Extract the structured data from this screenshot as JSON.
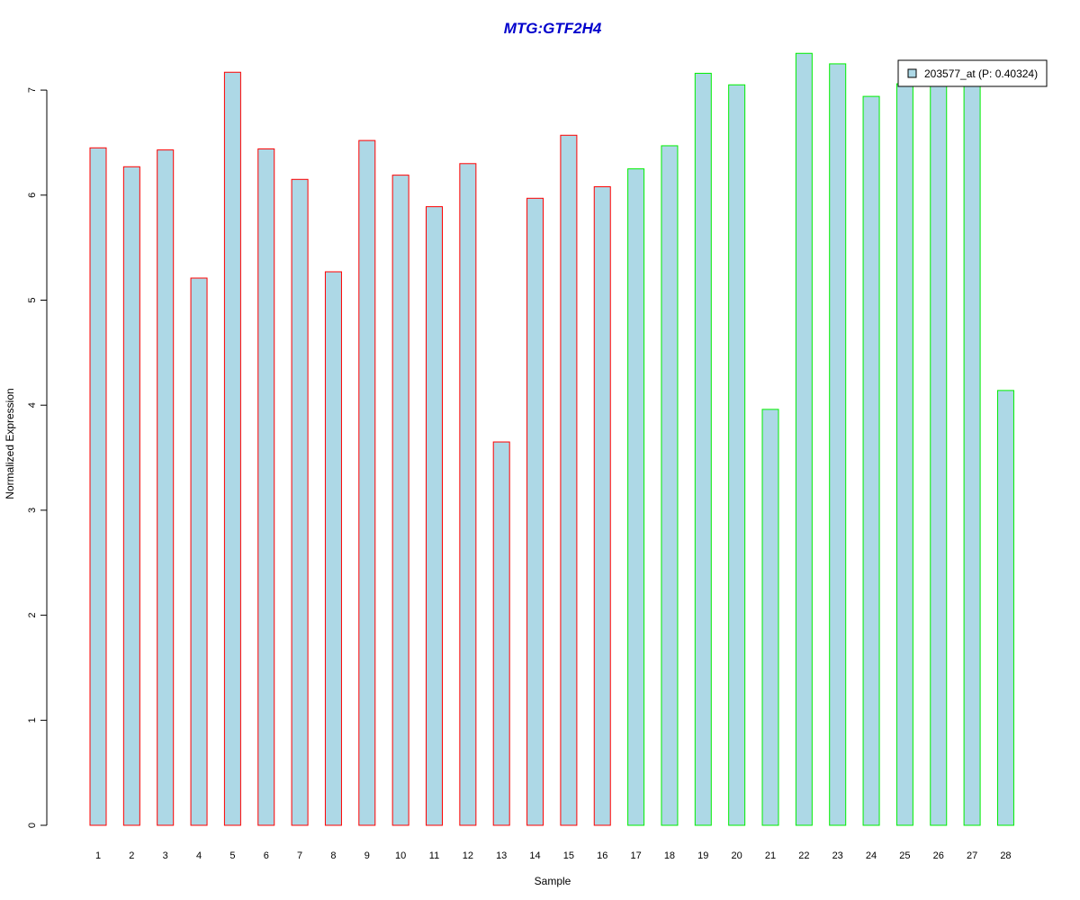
{
  "chart_data": {
    "type": "bar",
    "title": "MTG:GTF2H4",
    "xlabel": "Sample",
    "ylabel": "Normalized Expression",
    "ylim": [
      0,
      7.35
    ],
    "yticks": [
      0,
      1,
      2,
      3,
      4,
      5,
      6,
      7
    ],
    "categories": [
      "1",
      "2",
      "3",
      "4",
      "5",
      "6",
      "7",
      "8",
      "9",
      "10",
      "11",
      "12",
      "13",
      "14",
      "15",
      "16",
      "17",
      "18",
      "19",
      "20",
      "21",
      "22",
      "23",
      "24",
      "25",
      "26",
      "27",
      "28"
    ],
    "values": [
      6.45,
      6.27,
      6.43,
      5.21,
      7.17,
      6.44,
      6.15,
      5.27,
      6.52,
      6.19,
      5.89,
      6.3,
      3.65,
      5.97,
      6.57,
      6.08,
      6.25,
      6.47,
      7.16,
      7.05,
      3.96,
      7.35,
      7.25,
      6.94,
      7.06,
      7.05,
      7.05,
      4.14
    ],
    "group_colors": [
      "#ff0000",
      "#ff0000",
      "#ff0000",
      "#ff0000",
      "#ff0000",
      "#ff0000",
      "#ff0000",
      "#ff0000",
      "#ff0000",
      "#ff0000",
      "#ff0000",
      "#ff0000",
      "#ff0000",
      "#ff0000",
      "#ff0000",
      "#ff0000",
      "#00ee00",
      "#00ee00",
      "#00ee00",
      "#00ee00",
      "#00ee00",
      "#00ee00",
      "#00ee00",
      "#00ee00",
      "#00ee00",
      "#00ee00",
      "#00ee00",
      "#00ee00"
    ],
    "bar_fill": "#add8e6",
    "title_color": "#0000cc",
    "grid": false,
    "legend": {
      "position": "top-right",
      "entries": [
        {
          "label": "203577_at (P: 0.40324)",
          "color": "#add8e6"
        }
      ]
    }
  }
}
